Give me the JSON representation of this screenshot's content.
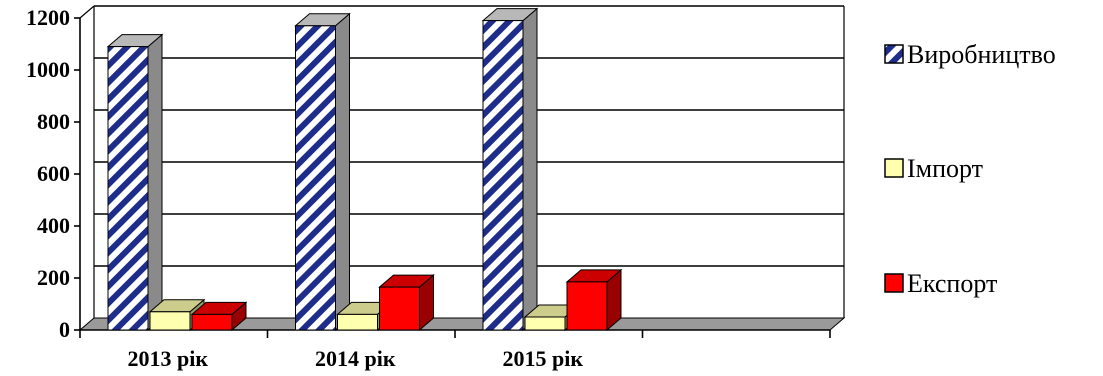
{
  "chart_data": {
    "type": "bar",
    "categories": [
      "2013 рік",
      "2014 рік",
      "2015 рік"
    ],
    "series": [
      {
        "name": "Виробництво",
        "values": [
          1090,
          1170,
          1190
        ],
        "color": "#1f2d8a",
        "pattern": "diagonal-stripes"
      },
      {
        "name": "Імпорт",
        "values": [
          70,
          60,
          50
        ],
        "color": "#ffffb0"
      },
      {
        "name": "Експорт",
        "values": [
          60,
          165,
          185
        ],
        "color": "#ff0000"
      }
    ],
    "ylim": [
      0,
      1200
    ],
    "yticks": [
      0,
      200,
      400,
      600,
      800,
      1000,
      1200
    ],
    "grid": true,
    "legend": "right",
    "style": "3d-column"
  }
}
